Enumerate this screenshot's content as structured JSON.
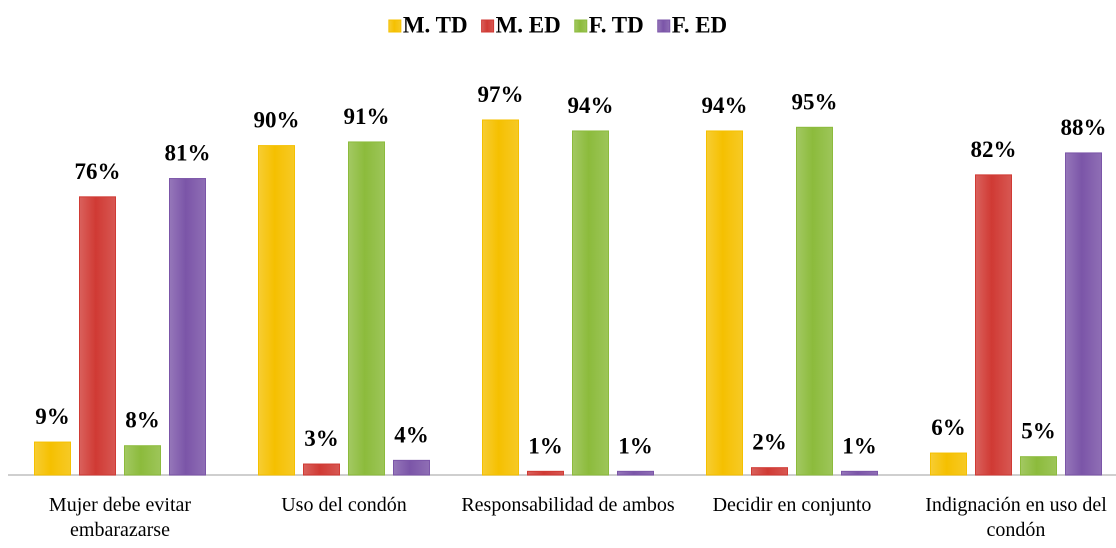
{
  "chart_data": {
    "type": "bar",
    "categories": [
      "Mujer debe evitar embarazarse",
      "Uso del condón",
      "Responsabilidad de ambos",
      "Decidir en conjunto",
      "Indignación en uso del condón"
    ],
    "series": [
      {
        "name": "M. TD",
        "color": "#f5c000",
        "values": [
          9,
          90,
          97,
          94,
          6
        ],
        "value_labels": [
          "9%",
          "90%",
          "97%",
          "94%",
          "6%"
        ]
      },
      {
        "name": "M. ED",
        "color": "#d03a34",
        "values": [
          76,
          3,
          1,
          2,
          82
        ],
        "value_labels": [
          "76%",
          "3%",
          "1%",
          "2%",
          "82%"
        ]
      },
      {
        "name": "F. TD",
        "color": "#8cbb3c",
        "values": [
          8,
          91,
          94,
          95,
          5
        ],
        "value_labels": [
          "8%",
          "91%",
          "94%",
          "95%",
          "5%"
        ]
      },
      {
        "name": "F. ED",
        "color": "#7b55a8",
        "values": [
          81,
          4,
          1,
          1,
          88
        ],
        "value_labels": [
          "81%",
          "4%",
          "1%",
          "1%",
          "88%"
        ]
      }
    ],
    "ylim": [
      0,
      100
    ],
    "legend": "top"
  }
}
